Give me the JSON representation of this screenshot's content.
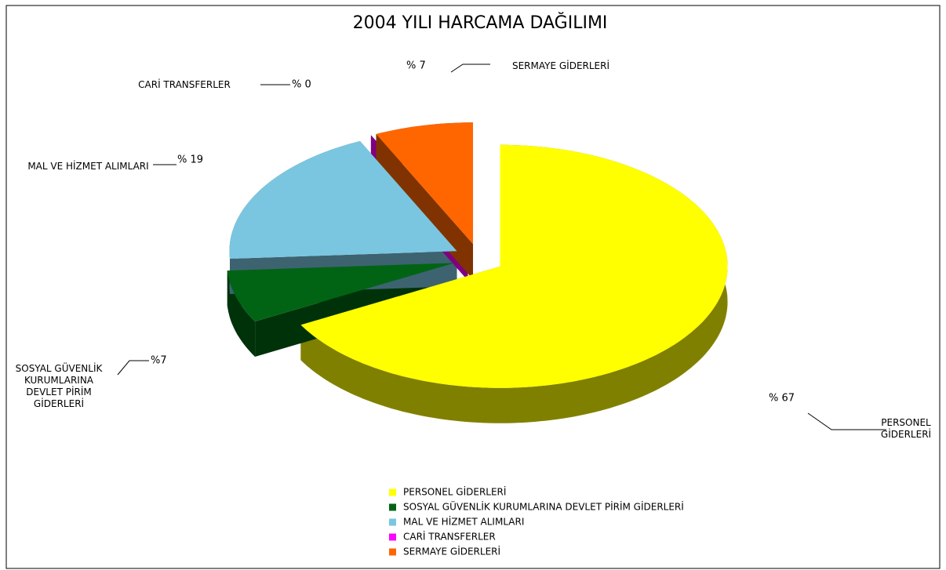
{
  "chart_data": {
    "type": "pie3d",
    "title": "2004 YILI HARCAMA DAĞILIMI",
    "categories": [
      "PERSONEL GİDERLERİ",
      "SOSYAL GÜVENLİK KURUMLARINA DEVLET PİRİM GİDERLERİ",
      "MAL VE HİZMET ALIMLARI",
      "CARİ TRANSFERLER",
      "SERMAYE GİDERLERİ"
    ],
    "values": [
      67,
      7,
      19,
      0,
      7
    ],
    "value_labels": [
      "% 67",
      "%7",
      "% 19",
      "% 0",
      "% 7"
    ],
    "colors": [
      "#ffff00",
      "#006414",
      "#7ac6e0",
      "#ff00ff",
      "#ff6600"
    ],
    "legend": "bottom"
  }
}
